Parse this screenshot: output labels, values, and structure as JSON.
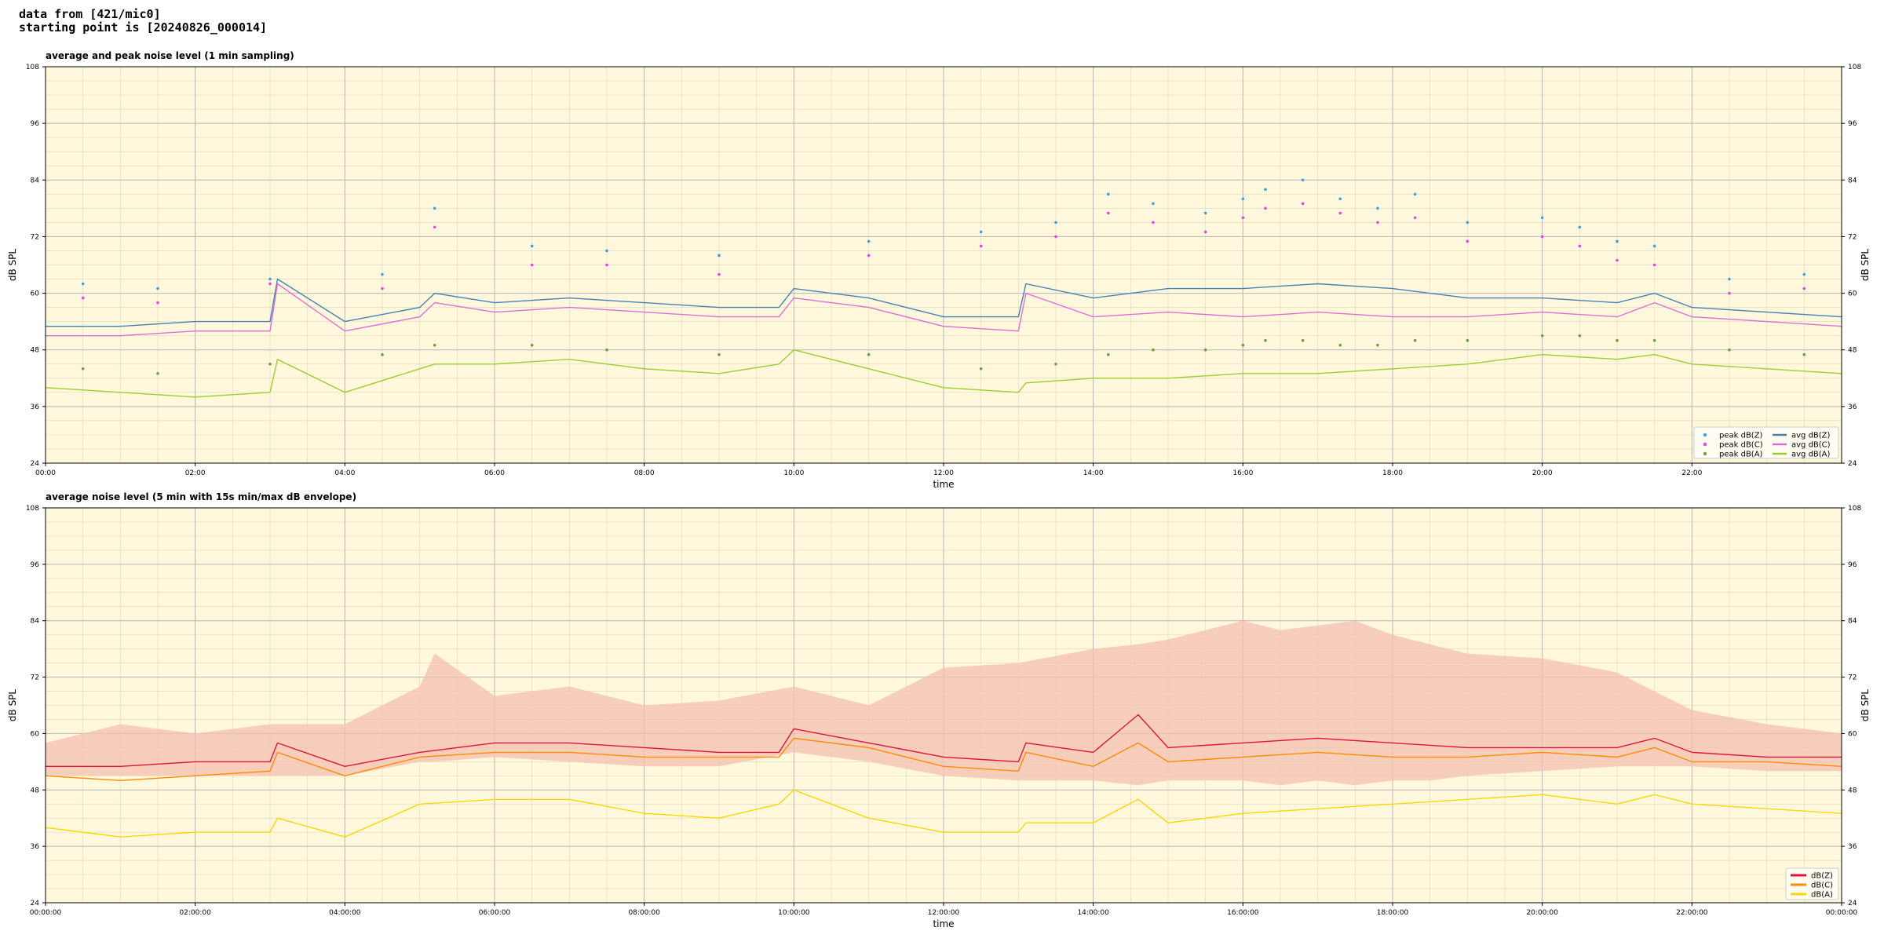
{
  "header": {
    "line1": "data from [421/mic0]",
    "line2": "starting point is [20240826_000014]"
  },
  "colors": {
    "plot_bg": "#fff8dc",
    "grid_major": "#b8b8b8",
    "grid_minor": "#e2dcc0",
    "z": "#4682b4",
    "c": "#da70d6",
    "a": "#9acd32",
    "peak_z": "#3ca0e6",
    "peak_c": "#ee40ee",
    "peak_a": "#6e9e46",
    "env": "#f4c0b0",
    "bz": "#dc143c",
    "bc": "#ff8c00",
    "ba": "#ffd700"
  },
  "chart_data": [
    {
      "type": "line",
      "title": "average and peak noise level (1 min sampling)",
      "xlabel": "time",
      "ylabel": "dB SPL",
      "ylim": [
        24,
        108
      ],
      "xlim": [
        0,
        24
      ],
      "yticks": [
        "24",
        "36",
        "48",
        "60",
        "72",
        "84",
        "96",
        "108"
      ],
      "xticks": [
        "00:00",
        "02:00",
        "04:00",
        "06:00",
        "08:00",
        "10:00",
        "12:00",
        "14:00",
        "16:00",
        "18:00",
        "20:00",
        "22:00"
      ],
      "grid": true,
      "legend_position": "bottom-right",
      "legend": [
        "peak dB(Z)",
        "peak dB(C)",
        "peak dB(A)",
        "avg dB(Z)",
        "avg dB(C)",
        "avg dB(A)"
      ],
      "x": [
        0,
        1,
        2,
        3,
        3.1,
        4,
        5,
        5.2,
        6,
        7,
        8,
        9,
        9.8,
        10,
        11,
        12,
        13,
        13.1,
        14,
        15,
        16,
        17,
        18,
        19,
        20,
        21,
        21.5,
        22,
        23,
        24
      ],
      "series": [
        {
          "name": "avg dB(Z)",
          "values": [
            53,
            53,
            54,
            54,
            63,
            54,
            57,
            60,
            58,
            59,
            58,
            57,
            57,
            61,
            59,
            55,
            55,
            62,
            59,
            61,
            61,
            62,
            61,
            59,
            59,
            58,
            60,
            57,
            56,
            55
          ]
        },
        {
          "name": "avg dB(C)",
          "values": [
            51,
            51,
            52,
            52,
            62,
            52,
            55,
            58,
            56,
            57,
            56,
            55,
            55,
            59,
            57,
            53,
            52,
            60,
            55,
            56,
            55,
            56,
            55,
            55,
            56,
            55,
            58,
            55,
            54,
            53
          ]
        },
        {
          "name": "avg dB(A)",
          "values": [
            40,
            39,
            38,
            39,
            46,
            39,
            44,
            45,
            45,
            46,
            44,
            43,
            45,
            48,
            44,
            40,
            39,
            41,
            42,
            42,
            43,
            43,
            44,
            45,
            47,
            46,
            47,
            45,
            44,
            43
          ]
        }
      ],
      "peaks": [
        {
          "name": "peak dB(Z)",
          "x": [
            0.5,
            1.5,
            3,
            4.5,
            5.2,
            6.5,
            7.5,
            9,
            11,
            12.5,
            13.5,
            14.2,
            14.8,
            15.5,
            16,
            16.3,
            16.8,
            17.3,
            17.8,
            18.3,
            19,
            20,
            20.5,
            21,
            21.5,
            22.5,
            23.5
          ],
          "values": [
            62,
            61,
            63,
            64,
            78,
            70,
            69,
            68,
            71,
            73,
            75,
            81,
            79,
            77,
            80,
            82,
            84,
            80,
            78,
            81,
            75,
            76,
            74,
            71,
            70,
            63,
            64
          ]
        },
        {
          "name": "peak dB(C)",
          "x": [
            0.5,
            1.5,
            3,
            4.5,
            5.2,
            6.5,
            7.5,
            9,
            11,
            12.5,
            13.5,
            14.2,
            14.8,
            15.5,
            16,
            16.3,
            16.8,
            17.3,
            17.8,
            18.3,
            19,
            20,
            20.5,
            21,
            21.5,
            22.5,
            23.5
          ],
          "values": [
            59,
            58,
            62,
            61,
            74,
            66,
            66,
            64,
            68,
            70,
            72,
            77,
            75,
            73,
            76,
            78,
            79,
            77,
            75,
            76,
            71,
            72,
            70,
            67,
            66,
            60,
            61
          ]
        },
        {
          "name": "peak dB(A)",
          "x": [
            0.5,
            1.5,
            3,
            4.5,
            5.2,
            6.5,
            7.5,
            9,
            11,
            12.5,
            13.5,
            14.2,
            14.8,
            15.5,
            16,
            16.3,
            16.8,
            17.3,
            17.8,
            18.3,
            19,
            20,
            20.5,
            21,
            21.5,
            22.5,
            23.5
          ],
          "values": [
            44,
            43,
            45,
            47,
            49,
            49,
            48,
            47,
            47,
            44,
            45,
            47,
            48,
            48,
            49,
            50,
            50,
            49,
            49,
            50,
            50,
            51,
            51,
            50,
            50,
            48,
            47
          ]
        }
      ]
    },
    {
      "type": "line",
      "title": "average noise level (5 min with 15s min/max dB envelope)",
      "xlabel": "time",
      "ylabel": "dB SPL",
      "ylim": [
        24,
        108
      ],
      "xlim": [
        0,
        24
      ],
      "yticks": [
        "24",
        "36",
        "48",
        "60",
        "72",
        "84",
        "96",
        "108"
      ],
      "xticks": [
        "00:00:00",
        "02:00:00",
        "04:00:00",
        "06:00:00",
        "08:00:00",
        "10:00:00",
        "12:00:00",
        "14:00:00",
        "16:00:00",
        "18:00:00",
        "20:00:00",
        "22:00:00",
        "00:00:00"
      ],
      "grid": true,
      "legend_position": "bottom-right",
      "legend": [
        "dB(Z)",
        "dB(C)",
        "dB(A)"
      ],
      "x": [
        0,
        1,
        2,
        3,
        3.1,
        4,
        5,
        6,
        7,
        8,
        9,
        9.8,
        10,
        11,
        12,
        13,
        13.1,
        14,
        14.6,
        15,
        16,
        17,
        18,
        19,
        20,
        21,
        21.5,
        22,
        23,
        24
      ],
      "series": [
        {
          "name": "dB(Z)",
          "values": [
            53,
            53,
            54,
            54,
            58,
            53,
            56,
            58,
            58,
            57,
            56,
            56,
            61,
            58,
            55,
            54,
            58,
            56,
            64,
            57,
            58,
            59,
            58,
            57,
            57,
            57,
            59,
            56,
            55,
            55
          ]
        },
        {
          "name": "dB(C)",
          "values": [
            51,
            50,
            51,
            52,
            56,
            51,
            55,
            56,
            56,
            55,
            55,
            55,
            59,
            57,
            53,
            52,
            56,
            53,
            58,
            54,
            55,
            56,
            55,
            55,
            56,
            55,
            57,
            54,
            54,
            53
          ]
        },
        {
          "name": "dB(A)",
          "values": [
            40,
            38,
            39,
            39,
            42,
            38,
            45,
            46,
            46,
            43,
            42,
            45,
            48,
            42,
            39,
            39,
            41,
            41,
            46,
            41,
            43,
            44,
            45,
            46,
            47,
            45,
            47,
            45,
            44,
            43
          ]
        }
      ],
      "envelope": {
        "x": [
          0,
          1,
          2,
          3,
          4,
          5,
          5.2,
          6,
          7,
          8,
          9,
          10,
          11,
          12,
          13,
          14,
          14.6,
          15,
          16,
          16.5,
          17,
          17.5,
          18,
          18.5,
          19,
          20,
          21,
          22,
          23,
          24
        ],
        "max": [
          58,
          62,
          60,
          62,
          62,
          70,
          77,
          68,
          70,
          66,
          67,
          70,
          66,
          74,
          75,
          78,
          79,
          80,
          84,
          82,
          83,
          84,
          81,
          79,
          77,
          76,
          73,
          65,
          62,
          60
        ],
        "min": [
          51,
          51,
          51,
          51,
          51,
          54,
          54,
          55,
          54,
          53,
          53,
          56,
          54,
          51,
          50,
          50,
          49,
          50,
          50,
          49,
          50,
          49,
          50,
          50,
          51,
          52,
          53,
          53,
          52,
          52
        ]
      }
    }
  ]
}
